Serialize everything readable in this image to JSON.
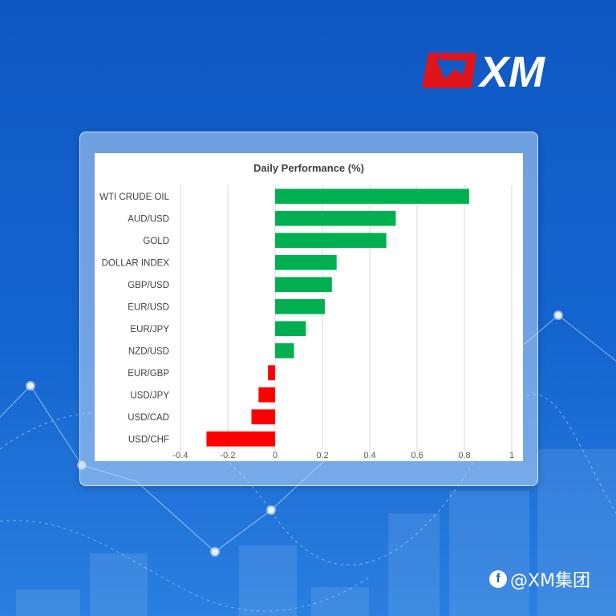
{
  "brand": {
    "logo_text": "XM",
    "watermark_text": "@XM集团"
  },
  "colors": {
    "positive": "#00b050",
    "negative": "#ff0000",
    "logo_red": "#e0151b"
  },
  "chart_data": {
    "type": "bar",
    "orientation": "horizontal",
    "title": "Daily Performance (%)",
    "categories": [
      "WTI CRUDE OIL",
      "AUD/USD",
      "GOLD",
      "DOLLAR INDEX",
      "GBP/USD",
      "EUR/USD",
      "EUR/JPY",
      "NZD/USD",
      "EUR/GBP",
      "USD/JPY",
      "USD/CAD",
      "USD/CHF"
    ],
    "values": [
      0.82,
      0.51,
      0.47,
      0.26,
      0.24,
      0.21,
      0.13,
      0.08,
      -0.03,
      -0.07,
      -0.1,
      -0.29
    ],
    "xlim": [
      -0.4,
      1
    ],
    "xticks": [
      "-0.4",
      "-0.2",
      "0",
      "0.2",
      "0.4",
      "0.6",
      "0.8",
      "1"
    ],
    "grid": true,
    "legend": "none"
  }
}
